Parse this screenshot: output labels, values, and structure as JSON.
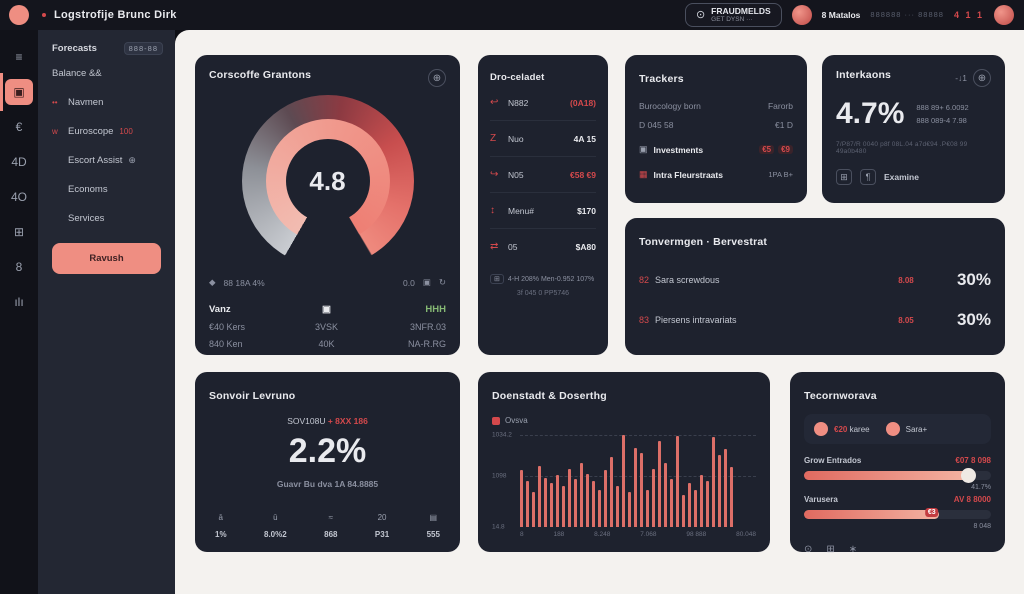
{
  "header": {
    "app_title": "Logstrofije Brunc Dirk",
    "fraud_button": {
      "line1": "FRAUDMELDS",
      "line2": "GET DYSN ···"
    },
    "user": {
      "name": "8 Matalos",
      "meta": "888888 ··· 88888",
      "alerts": "4 1 1"
    }
  },
  "rail": {
    "items": [
      {
        "name": "menu",
        "glyph": "≡",
        "active": false
      },
      {
        "name": "dashboard",
        "glyph": "▣",
        "active": true
      },
      {
        "name": "euro",
        "glyph": "€",
        "active": false
      },
      {
        "name": "quota-40",
        "glyph": "4D",
        "active": false
      },
      {
        "name": "quota-40b",
        "glyph": "4O",
        "active": false
      },
      {
        "name": "coins",
        "glyph": "⊞",
        "active": false
      },
      {
        "name": "accounts",
        "glyph": "8",
        "active": false
      },
      {
        "name": "stats",
        "glyph": "ılı",
        "active": false
      }
    ]
  },
  "sidebar": {
    "header": {
      "label": "Forecasts",
      "badge": "888-88"
    },
    "items": [
      {
        "icon": "",
        "label": "Balance &&",
        "suffix": ""
      },
      {
        "icon": "••",
        "label": "Navmen",
        "suffix": ""
      },
      {
        "icon": "w",
        "label": "Euroscope",
        "suffix": "100"
      },
      {
        "icon": "",
        "label": "Escort Assist",
        "suffix": "⊕"
      },
      {
        "icon": "",
        "label": "Economs",
        "suffix": ""
      },
      {
        "icon": "",
        "label": "Services",
        "suffix": ""
      }
    ],
    "cta": "Ravush"
  },
  "cards": {
    "score": {
      "title": "Corscoffe Grantons",
      "gauge_value": "4.8",
      "meta_left_icon": "◆",
      "meta_left": "88 18A 4%",
      "meta_right": "0.0",
      "meta_right_icons": [
        "▣",
        "↻"
      ],
      "cols": [
        {
          "h": "Vanz",
          "v1": "€40 Kers",
          "v2": "840 Ken"
        },
        {
          "h": "▣",
          "v1": "3VSK",
          "v2": "40K"
        },
        {
          "h": "HHH",
          "v1": "3NFR.03",
          "v2": "NA-R.RG"
        }
      ]
    },
    "payments": {
      "title": "Dro-celadet",
      "rows": [
        {
          "icon": "↩",
          "label": "N882",
          "value": "(0A18)",
          "red": true
        },
        {
          "icon": "Z",
          "label": "Nuo",
          "value": "4A 15",
          "red": false
        },
        {
          "icon": "↪",
          "label": "N05",
          "value": "€58 €9",
          "red": true
        },
        {
          "icon": "↕",
          "label": "Menu#",
          "value": "$170",
          "red": false
        },
        {
          "icon": "⇄",
          "label": "05",
          "value": "$A80",
          "red": false
        }
      ],
      "footer_badge": "⊞",
      "footer_text": "4-H 208% Men-0.952 107%",
      "footer_sub": "3f 045 0 PP5746"
    },
    "trackers": {
      "title": "Trackers",
      "rows": [
        {
          "icon": "",
          "label": "Burocology born",
          "value": "Farorb"
        },
        {
          "icon": "",
          "label": "D 045 58",
          "value": "€1 D"
        },
        {
          "icon": "▣",
          "label": "Investments",
          "badges": [
            "€5",
            "€9"
          ]
        },
        {
          "icon": "▦",
          "label": "Intra Fleurstraats",
          "value": "1PA  B+"
        }
      ]
    },
    "rate": {
      "title": "Interkaons",
      "top_right": "-↓1",
      "big": "4.7%",
      "side1": "888 89+ 6.0092",
      "side2": "888 089-4 7.98",
      "fine": "7/P87/R 0040 p8f 08L.04 a7d€94 .P€08 99 49a0b480",
      "foot_icons": [
        "⊞",
        "¶"
      ],
      "foot_label": "Examine"
    },
    "allocation": {
      "title": "Tonvermgen · Bervestrat",
      "rows": [
        {
          "icon": "82",
          "label": "Sara screwdous",
          "mid": "8.08",
          "value": "30%"
        },
        {
          "icon": "83",
          "label": "Piersens intravariats",
          "mid": "8.05",
          "value": "30%"
        }
      ]
    },
    "growth": {
      "title": "Sonvoir Levruno",
      "sub_top": "SOV108U",
      "sub_top_red": "+ 8XX 186",
      "big": "2.2%",
      "sub_bottom": "Guavr Bu dva 1A 84.8885",
      "stats": [
        {
          "icon": "ā",
          "v": "1%"
        },
        {
          "icon": "ū",
          "v": "8.0%2"
        },
        {
          "icon": "≈",
          "v": "868"
        },
        {
          "icon": "20",
          "v": "P31"
        },
        {
          "icon": "▤",
          "v": "555"
        }
      ]
    },
    "activity": {
      "title": "Doenstadt & Doserthg",
      "legend": "Ovsva"
    },
    "limits": {
      "title": "Tecornworava",
      "chips": [
        {
          "amount": "€20",
          "label": "karee"
        },
        {
          "amount": "",
          "label": "Sara+"
        }
      ],
      "bars": [
        {
          "label": "Grow Entrados",
          "value": "€07 8 098",
          "pct": 88,
          "sub": "41.7%",
          "badge": ""
        },
        {
          "label": "Varusera",
          "value": "AV 8 8000",
          "pct": 72,
          "sub": "8 048",
          "badge": "€3"
        }
      ],
      "foot_icons": [
        "⊙",
        "⊞",
        "∗"
      ]
    }
  },
  "chart_data": {
    "type": "bar",
    "title": "Doenstadt & Doserthg",
    "legend": [
      "Ovsva"
    ],
    "ylabel": "",
    "xlabel": "",
    "ytick_labels": [
      "1034.2",
      "1098",
      "14.8"
    ],
    "xtick_labels": [
      "8",
      "188",
      "8.248",
      "7.068",
      "98 888",
      "80.048"
    ],
    "ylim": [
      0,
      100
    ],
    "grid": "dashed horizontal at 100 and 55",
    "values": [
      62,
      50,
      38,
      66,
      53,
      48,
      56,
      45,
      63,
      52,
      70,
      58,
      50,
      40,
      62,
      76,
      45,
      100,
      38,
      86,
      80,
      40,
      63,
      93,
      70,
      52,
      99,
      35,
      48,
      40,
      56,
      50,
      98,
      78,
      85,
      65
    ]
  }
}
